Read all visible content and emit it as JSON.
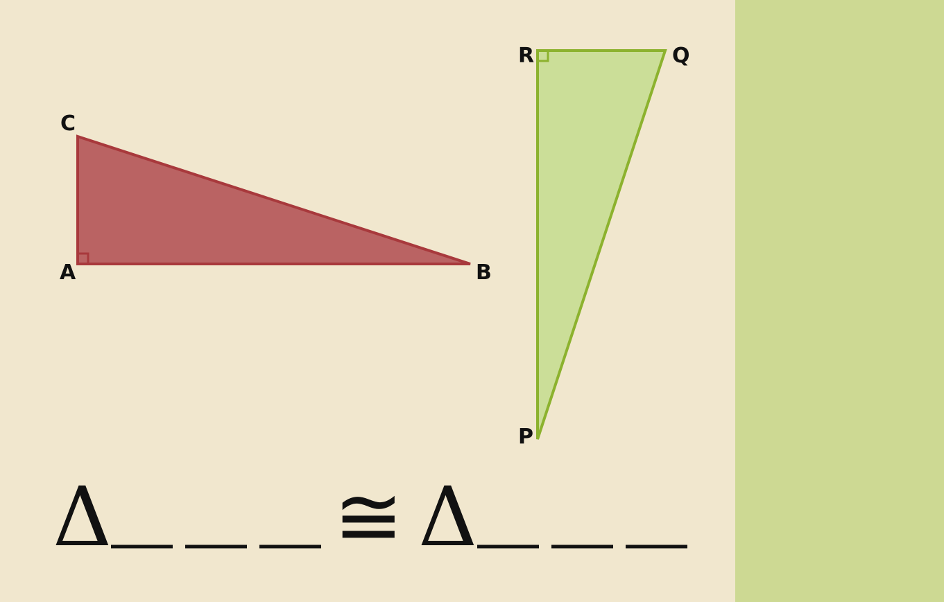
{
  "triangle_abc": {
    "vertices": [
      {
        "label": "C"
      },
      {
        "label": "A"
      },
      {
        "label": "B"
      }
    ],
    "right_angle_at": "A",
    "fill_color": "#BA6363",
    "stroke_color": "#A8393C"
  },
  "triangle_pqr": {
    "vertices": [
      {
        "label": "R"
      },
      {
        "label": "Q"
      },
      {
        "label": "P"
      }
    ],
    "right_angle_at": "R",
    "fill_color": "#CBDE98",
    "stroke_color": "#8CB22E"
  },
  "statement": {
    "triangle_symbol_left": "Δ",
    "congruence_symbol": "≅",
    "triangle_symbol_right": "Δ",
    "blank_count_left": 3,
    "blank_count_right": 3
  },
  "colors": {
    "background": "#F1E7CE",
    "side_panel": "#CDD993",
    "text": "#111111"
  }
}
